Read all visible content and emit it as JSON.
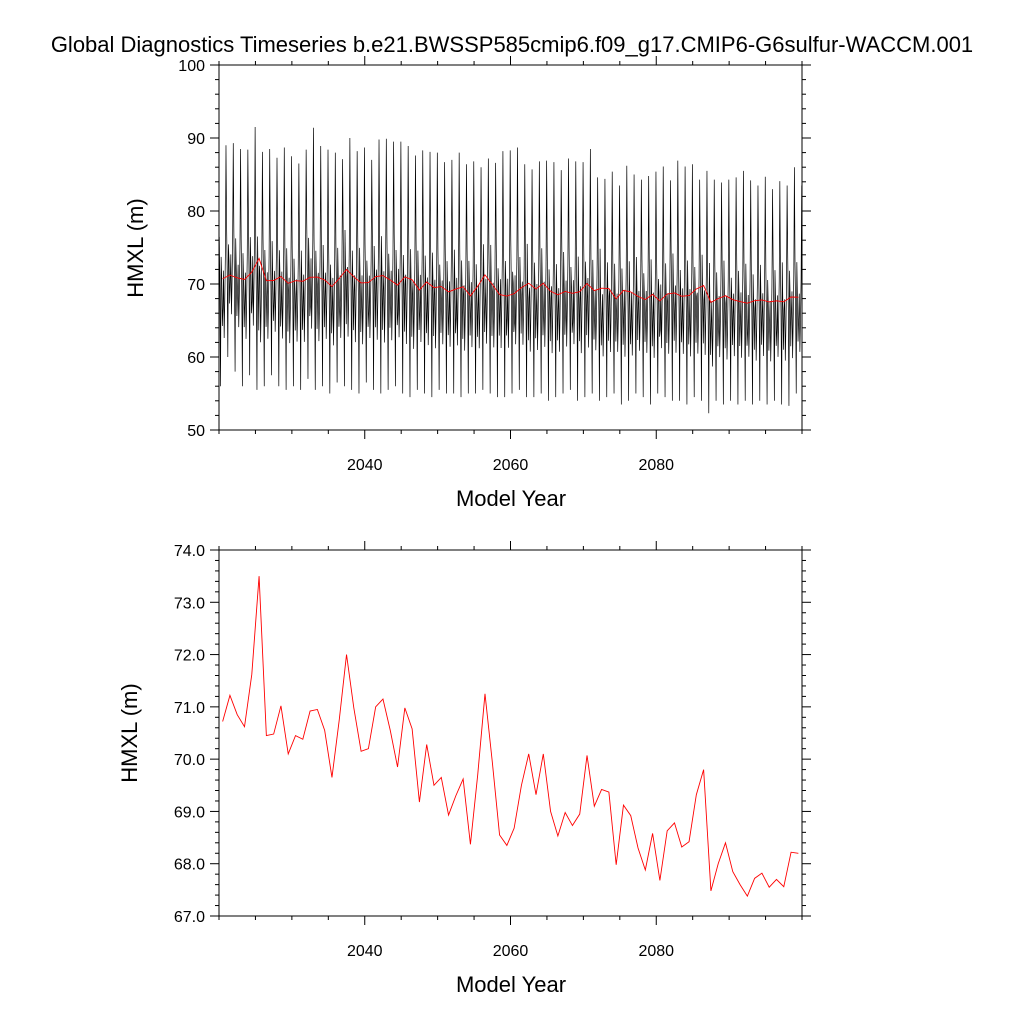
{
  "figure": {
    "title": "Global Diagnostics Timeseries b.e21.BWSSP585cmip6.f09_g17.CMIP6-G6sulfur-WACCM.001"
  },
  "chart_data": [
    {
      "type": "line",
      "xlabel": "Model Year",
      "ylabel": "HMXL (m)",
      "xlim": [
        2020,
        2100
      ],
      "ylim": [
        50,
        100
      ],
      "xticks": [
        "2040",
        "2060",
        "2080"
      ],
      "yticks": [
        "50",
        "60",
        "70",
        "80",
        "90",
        "100"
      ],
      "grid": false,
      "series": [
        {
          "color": "#000000",
          "description_values": "monthly values oscillating seasonally between roughly 53-58 (minima) and 83-91 (maxima), with lower values near 62-72 at the secondary peaks",
          "annual_maxima": [
            89.0,
            89.3,
            88.5,
            88.4,
            91.5,
            88.1,
            88.5,
            87.3,
            88.7,
            87.5,
            86.5,
            88.4,
            91.4,
            88.9,
            88.4,
            88.0,
            87.1,
            90.0,
            88.2,
            88.7,
            87.0,
            89.8,
            89.9,
            89.5,
            89.5,
            88.9,
            87.6,
            88.3,
            88.1,
            88.0,
            86.7,
            87.0,
            88.0,
            86.4,
            86.8,
            86.0,
            87.2,
            86.6,
            88.2,
            88.3,
            88.7,
            86.4,
            85.7,
            86.8,
            86.9,
            86.7,
            85.6,
            87.2,
            86.8,
            86.7,
            88.5,
            84.6,
            84.4,
            85.4,
            83.5,
            86.2,
            85.0,
            84.3,
            84.8,
            85.4,
            86.1,
            84.2,
            86.9,
            86.1,
            86.4,
            84.3,
            85.5,
            84.3,
            83.9,
            84.3,
            84.6,
            85.5,
            84.2,
            83.5,
            84.7,
            83.0,
            84.1,
            83.5,
            86.0,
            83.5
          ],
          "annual_minima": [
            56.0,
            60.0,
            58.0,
            56.0,
            57.5,
            55.5,
            56.0,
            57.5,
            56.0,
            55.5,
            56.0,
            55.5,
            57.0,
            55.5,
            56.0,
            55.0,
            56.5,
            56.0,
            55.5,
            55.0,
            56.5,
            55.5,
            55.0,
            55.5,
            56.0,
            55.0,
            54.5,
            55.5,
            55.0,
            54.5,
            55.5,
            55.0,
            55.0,
            54.5,
            55.0,
            55.0,
            55.5,
            55.0,
            54.5,
            54.5,
            55.0,
            55.5,
            54.5,
            54.5,
            55.0,
            54.0,
            54.5,
            55.0,
            55.5,
            54.0,
            54.5,
            55.0,
            54.0,
            54.5,
            55.0,
            53.5,
            54.0,
            55.0,
            54.5,
            53.5,
            55.0,
            54.5,
            54.0,
            54.0,
            53.5,
            54.5,
            54.0,
            52.3,
            54.0,
            53.5,
            54.0,
            53.5,
            54.0,
            53.5,
            54.0,
            53.5,
            54.0,
            53.5,
            53.3,
            55.0
          ]
        },
        {
          "color": "#ff0000",
          "description_values": "annual means (same values as the lower panel)"
        }
      ]
    },
    {
      "type": "line",
      "xlabel": "Model Year",
      "ylabel": "HMXL (m)",
      "xlim": [
        2020,
        2100
      ],
      "ylim": [
        67.0,
        74.0
      ],
      "xticks": [
        "2040",
        "2060",
        "2080"
      ],
      "yticks": [
        "67.0",
        "68.0",
        "69.0",
        "70.0",
        "71.0",
        "72.0",
        "73.0",
        "74.0"
      ],
      "grid": false,
      "series": [
        {
          "color": "#ff0000",
          "x": [
            2020.5,
            2021.5,
            2022.5,
            2023.5,
            2024.5,
            2025.5,
            2026.5,
            2027.5,
            2028.5,
            2029.5,
            2030.5,
            2031.5,
            2032.5,
            2033.5,
            2034.5,
            2035.5,
            2036.5,
            2037.5,
            2038.5,
            2039.5,
            2040.5,
            2041.5,
            2042.5,
            2043.5,
            2044.5,
            2045.5,
            2046.5,
            2047.5,
            2048.5,
            2049.5,
            2050.5,
            2051.5,
            2052.5,
            2053.5,
            2054.5,
            2055.5,
            2056.5,
            2057.5,
            2058.5,
            2059.5,
            2060.5,
            2061.5,
            2062.5,
            2063.5,
            2064.5,
            2065.5,
            2066.5,
            2067.5,
            2068.5,
            2069.5,
            2070.5,
            2071.5,
            2072.5,
            2073.5,
            2074.5,
            2075.5,
            2076.5,
            2077.5,
            2078.5,
            2079.5,
            2080.5,
            2081.5,
            2082.5,
            2083.5,
            2084.5,
            2085.5,
            2086.5,
            2087.5,
            2088.5,
            2089.5,
            2090.5,
            2091.5,
            2092.5,
            2093.5,
            2094.5,
            2095.5,
            2096.5,
            2097.5,
            2098.5,
            2099.5
          ],
          "values": [
            70.72,
            71.22,
            70.85,
            70.62,
            71.62,
            73.5,
            70.45,
            70.48,
            71.02,
            70.1,
            70.45,
            70.38,
            70.92,
            70.95,
            70.55,
            69.65,
            70.75,
            72.0,
            70.98,
            70.15,
            70.2,
            71.0,
            71.15,
            70.55,
            69.85,
            70.98,
            70.58,
            69.18,
            70.28,
            69.5,
            69.65,
            68.93,
            69.3,
            69.62,
            68.37,
            69.7,
            71.25,
            69.95,
            68.55,
            68.35,
            68.68,
            69.5,
            70.1,
            69.32,
            70.1,
            69.0,
            68.53,
            68.98,
            68.73,
            68.95,
            70.07,
            69.1,
            69.42,
            69.37,
            67.98,
            69.12,
            68.92,
            68.3,
            67.88,
            68.58,
            67.68,
            68.63,
            68.78,
            68.32,
            68.42,
            69.32,
            69.8,
            67.48,
            68.0,
            68.4,
            67.85,
            67.6,
            67.38,
            67.72,
            67.82,
            67.55,
            67.7,
            67.56,
            68.22,
            68.2
          ]
        }
      ]
    }
  ]
}
